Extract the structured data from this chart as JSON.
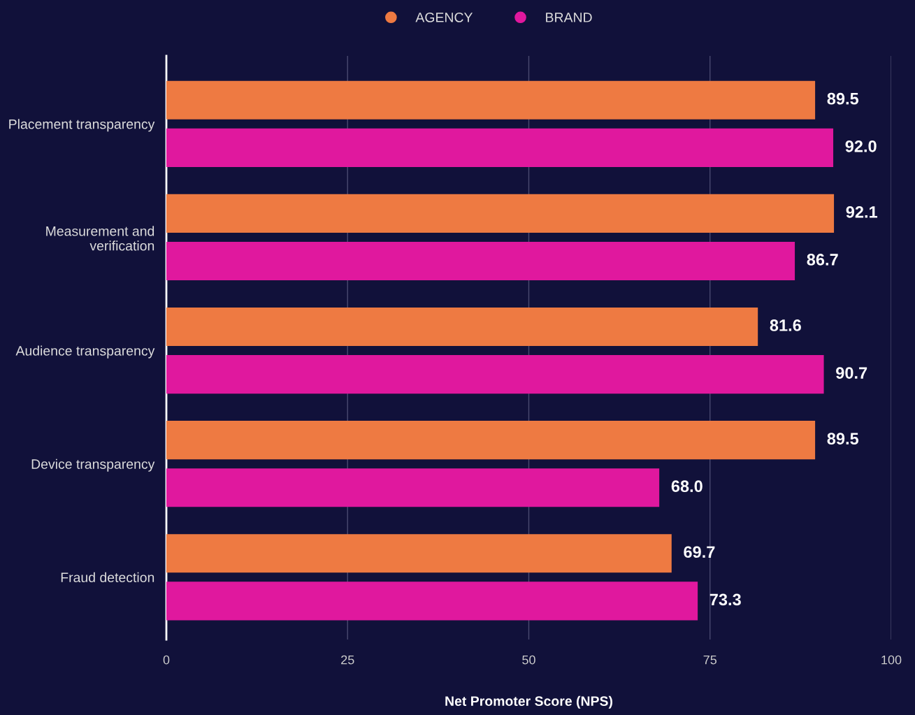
{
  "chart_data": {
    "type": "bar",
    "orientation": "horizontal",
    "xlabel": "Net Promoter Score (NPS)",
    "categories": [
      "Placement transparency",
      "Measurement and\nverification",
      "Audience transparency",
      "Device transparency",
      "Fraud detection"
    ],
    "series": [
      {
        "name": "AGENCY",
        "color": "#ee7a42",
        "values": [
          89.5,
          92.1,
          81.6,
          89.5,
          69.7
        ],
        "value_labels": [
          "89.5",
          "92.1",
          "81.6",
          "89.5",
          "69.7"
        ]
      },
      {
        "name": "BRAND",
        "color": "#e0189e",
        "values": [
          92.0,
          86.7,
          90.7,
          68.0,
          73.3
        ],
        "value_labels": [
          "92.0",
          "86.7",
          "90.7",
          "68.0",
          "73.3"
        ]
      }
    ],
    "xlim": [
      0,
      100
    ],
    "xticks": [
      0,
      25,
      50,
      75,
      100
    ],
    "grid": "x",
    "legend": "top"
  }
}
